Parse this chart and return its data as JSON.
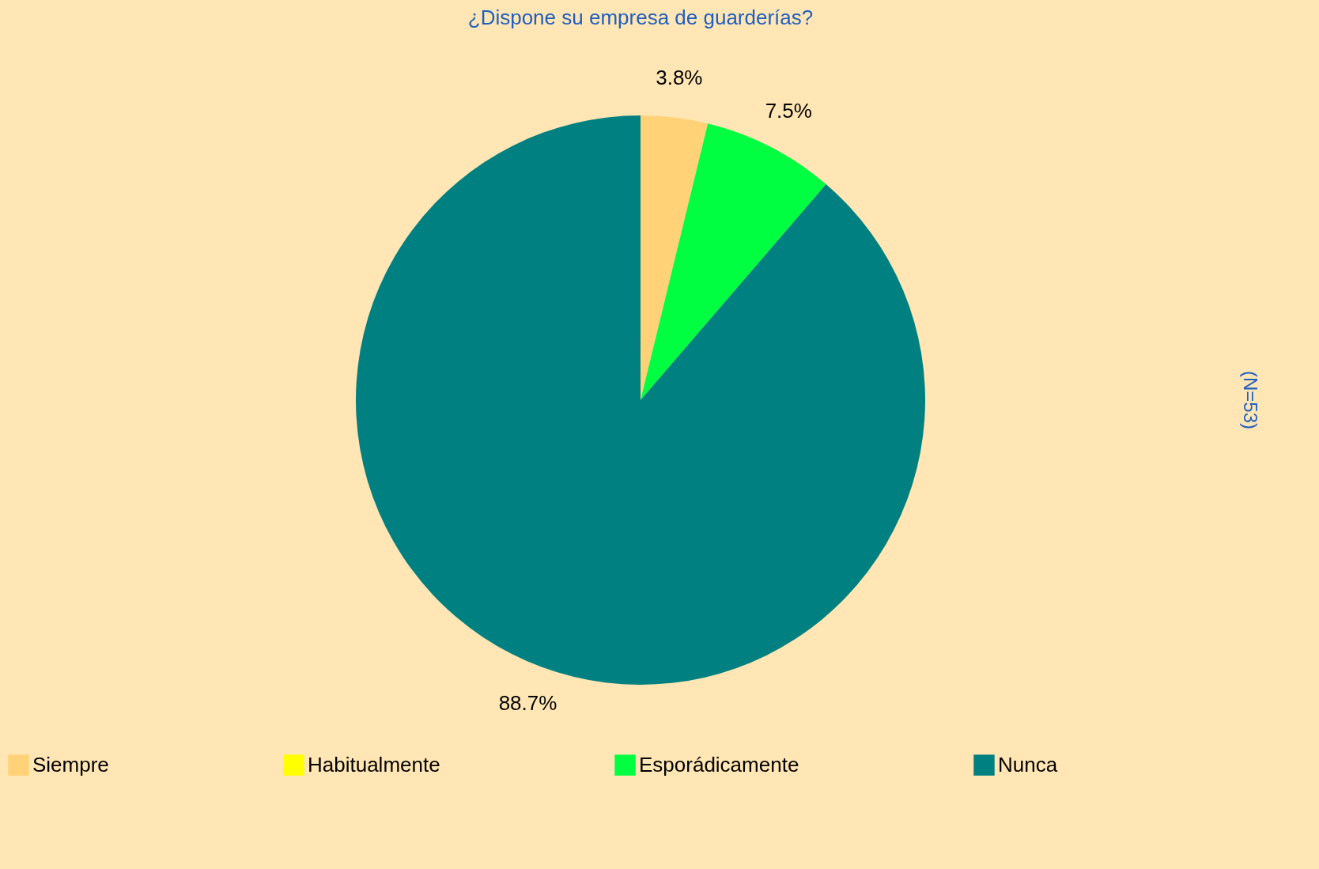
{
  "chart_data": {
    "type": "pie",
    "title": "¿Dispone su empresa de guarderías?",
    "categories": [
      "Siempre",
      "Habitualmente",
      "Esporádicamente",
      "Nunca"
    ],
    "values": [
      3.8,
      0,
      7.5,
      88.7
    ],
    "colors": [
      "#ffd278",
      "#ffff00",
      "#00ff40",
      "#008080"
    ],
    "value_labels": [
      "3.8%",
      null,
      "7.5%",
      "88.7%"
    ],
    "annotations": [
      "(N=53)"
    ],
    "legend": "bottom"
  }
}
